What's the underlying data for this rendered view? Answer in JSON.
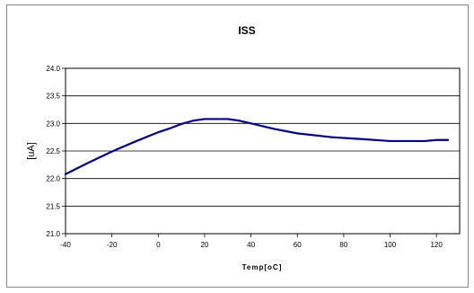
{
  "chart_data": {
    "type": "line",
    "title": "ISS",
    "xlabel": "Temp[oC]",
    "ylabel": "[uA]",
    "xlim": [
      -40,
      130
    ],
    "ylim": [
      21.0,
      24.0
    ],
    "x_ticks": [
      "-40",
      "-20",
      "0",
      "20",
      "40",
      "60",
      "80",
      "100",
      "120"
    ],
    "y_ticks": [
      "21.0",
      "21.5",
      "22.0",
      "22.5",
      "23.0",
      "23.5",
      "24.0"
    ],
    "grid": "horizontal",
    "legend": "none",
    "series": [
      {
        "color": "#000080",
        "x": [
          -40,
          -30,
          -20,
          -10,
          0,
          5,
          10,
          15,
          20,
          25,
          30,
          35,
          40,
          50,
          60,
          75,
          90,
          100,
          110,
          115,
          120,
          125
        ],
        "y": [
          22.08,
          22.29,
          22.49,
          22.67,
          22.84,
          22.91,
          22.99,
          23.05,
          23.08,
          23.08,
          23.08,
          23.05,
          23.0,
          22.9,
          22.82,
          22.75,
          22.71,
          22.68,
          22.68,
          22.68,
          22.7,
          22.7
        ]
      }
    ],
    "colors": {
      "frame_border": "#888888",
      "plot_background": "#ffffff",
      "outer_background": "#ffffff",
      "grid": "#000000"
    }
  }
}
